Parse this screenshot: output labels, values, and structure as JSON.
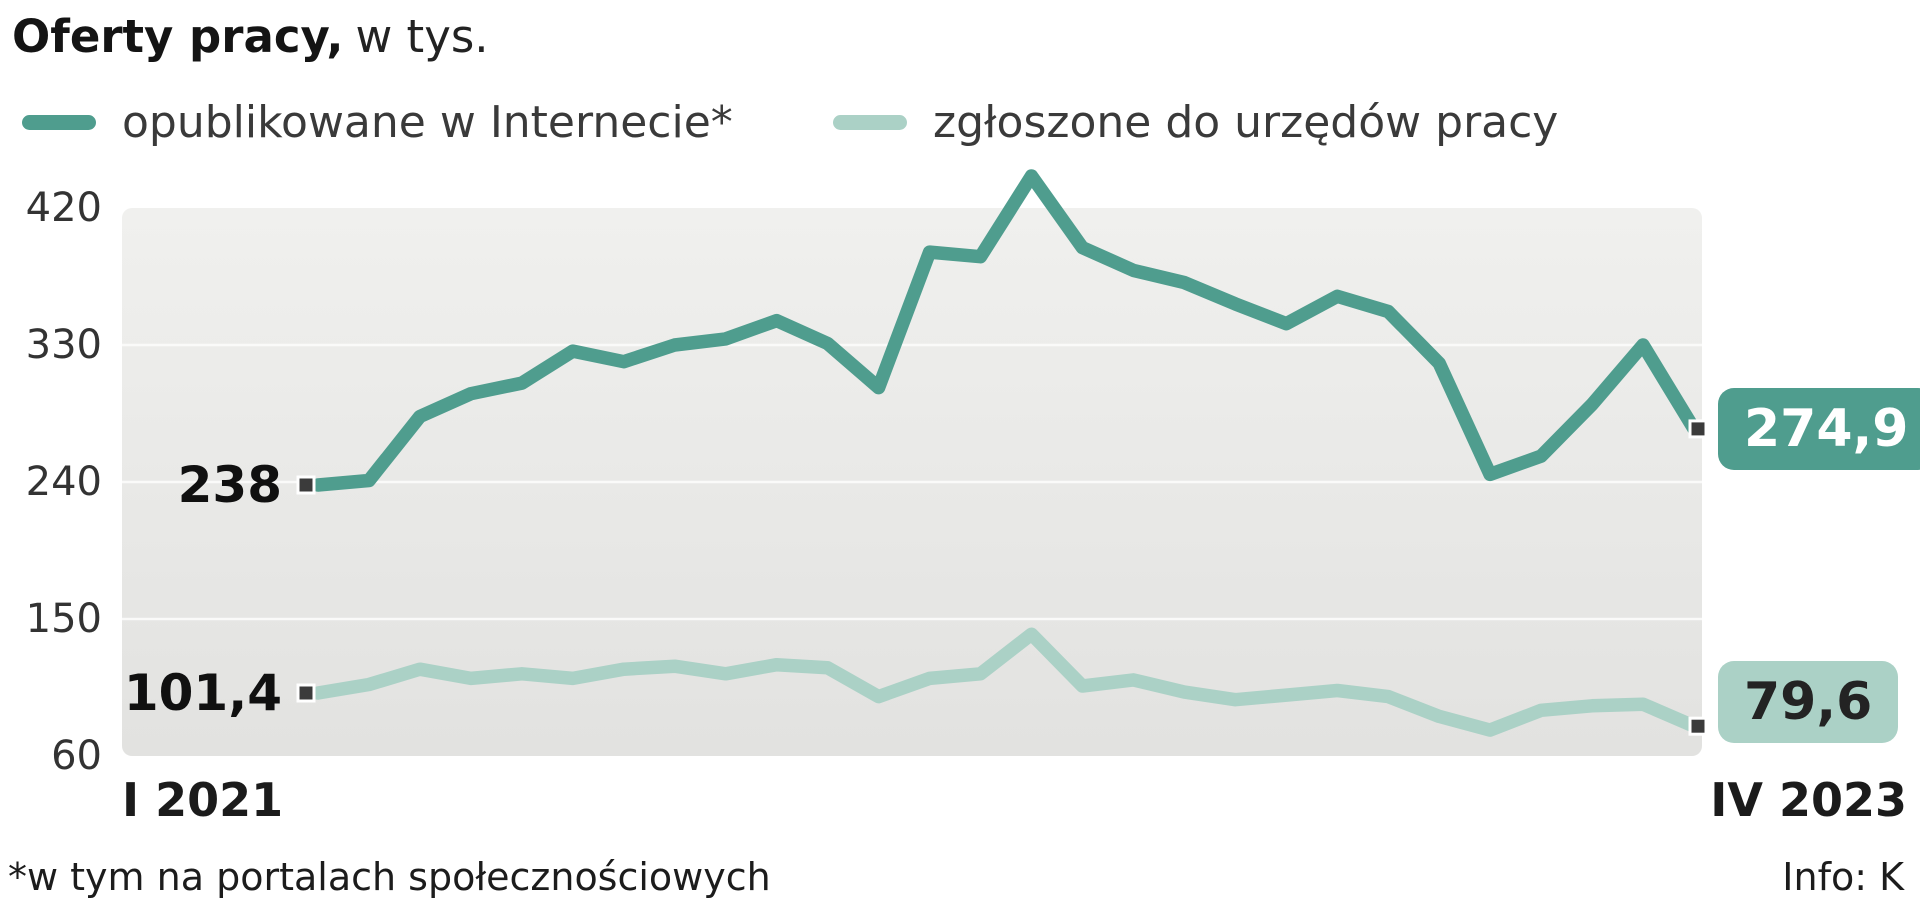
{
  "title": {
    "bold": "Oferty pracy,",
    "unit": "w tys."
  },
  "footer": {
    "note": "*w tym na portalach społecznościowych",
    "source": "Info: K"
  },
  "chart_data": {
    "type": "line",
    "title": "Oferty pracy, w tys.",
    "x_start_label": "I 2021",
    "x_end_label": "IV 2023",
    "y_ticks": [
      420,
      330,
      240,
      150,
      60
    ],
    "ylim": [
      60,
      420
    ],
    "grid": true,
    "legend_position": "top",
    "series": [
      {
        "name": "opublikowane w Internecie*",
        "color": "#4f9d8e",
        "start_label": "238",
        "end_label": "274,9",
        "values": [
          238,
          241,
          283,
          298,
          305,
          326,
          319,
          330,
          334,
          346,
          331,
          302,
          391,
          388,
          441,
          394,
          379,
          371,
          357,
          344,
          362,
          352,
          318,
          245,
          257,
          291,
          330,
          274.9
        ]
      },
      {
        "name": "zgłoszone do urzędów pracy",
        "color": "#abd1c6",
        "start_label": "101,4",
        "end_label": "79,6",
        "values": [
          101.4,
          107,
          117,
          111,
          114,
          111,
          117,
          119,
          114,
          120,
          118,
          99,
          111,
          114,
          140,
          106,
          110,
          102,
          97,
          100,
          103,
          99,
          86,
          77,
          90,
          93,
          94,
          79.6
        ]
      }
    ]
  }
}
